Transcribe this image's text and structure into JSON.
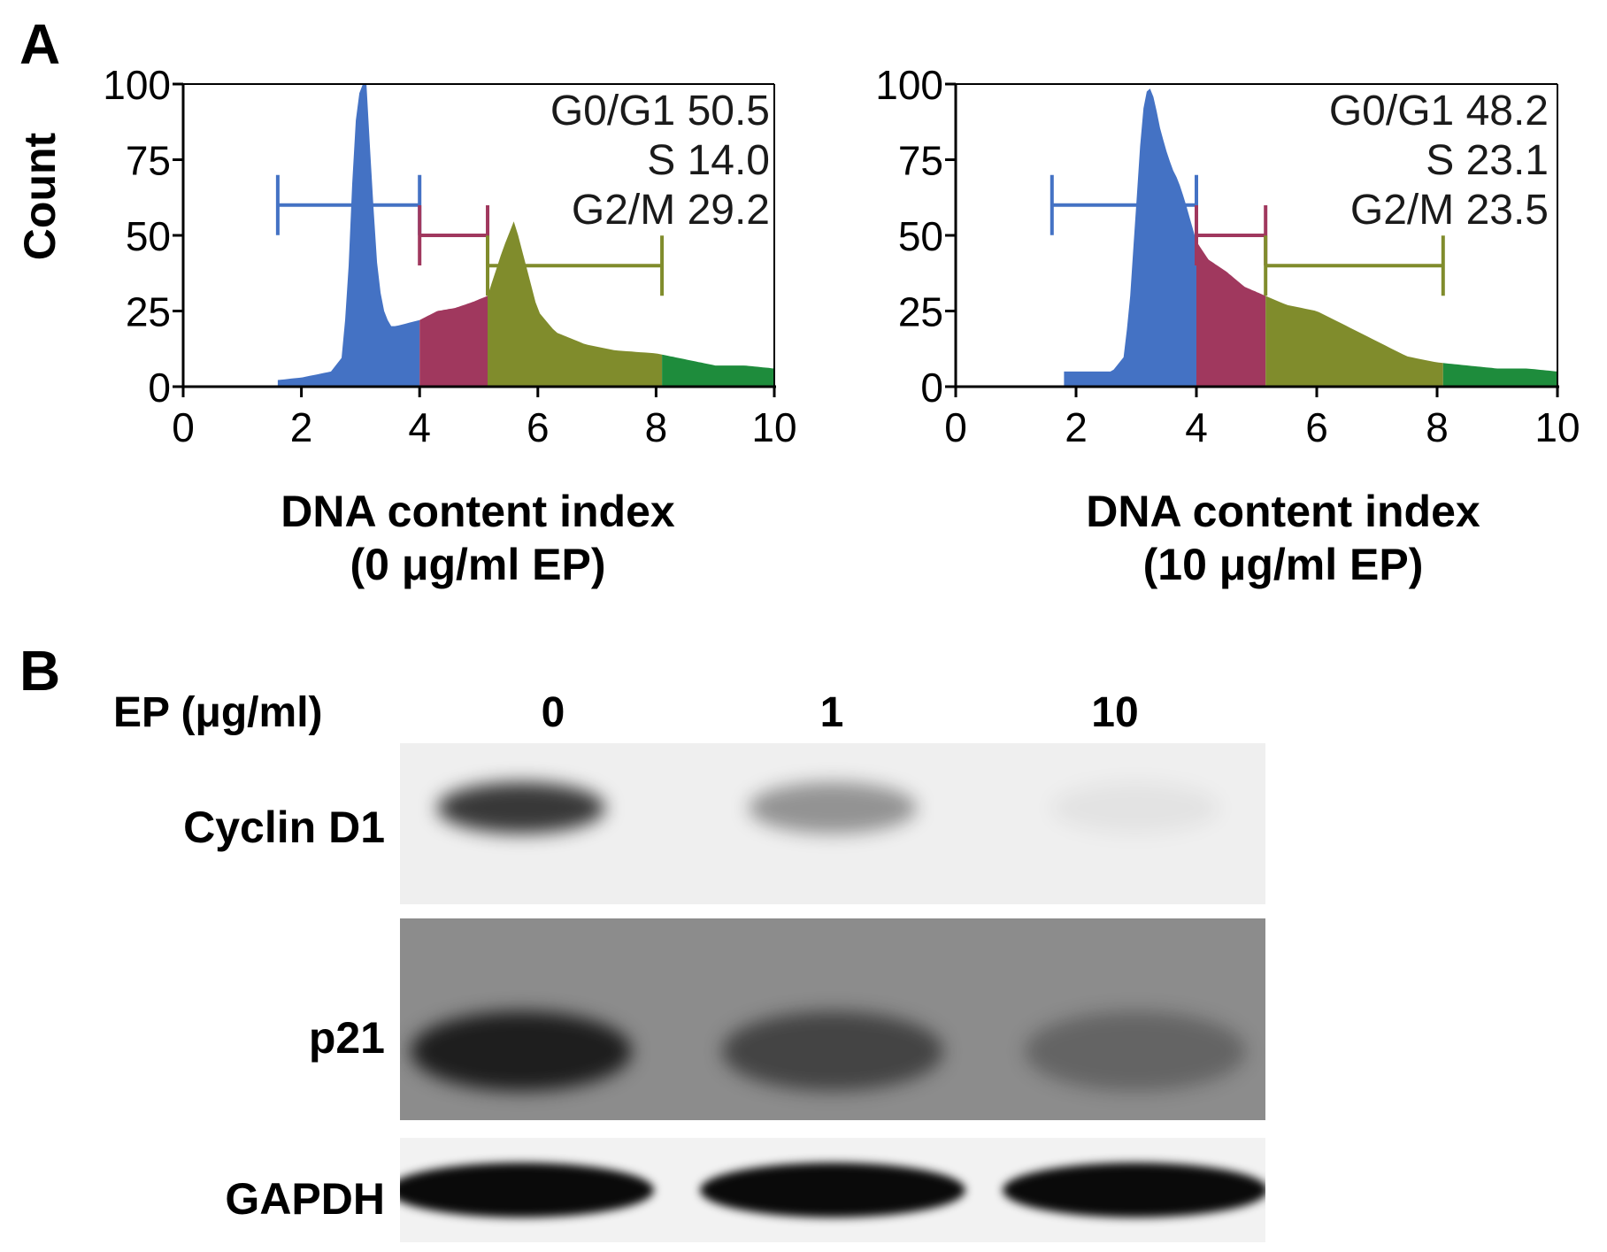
{
  "panel_a": {
    "letter": "A",
    "y_label": "Count",
    "histograms": [
      {
        "x_label_line1": "DNA content index",
        "x_label_line2": "(0 μg/ml EP)",
        "stats": [
          {
            "phase": "G0/G1",
            "value": "50.5",
            "text": "G0/G1 50.5"
          },
          {
            "phase": "S",
            "value": "14.0",
            "text": "S 14.0"
          },
          {
            "phase": "G2/M",
            "value": "29.2",
            "text": "G2/M 29.2"
          }
        ]
      },
      {
        "x_label_line1": "DNA content index",
        "x_label_line2": "(10 μg/ml EP)",
        "stats": [
          {
            "phase": "G0/G1",
            "value": "48.2",
            "text": "G0/G1 48.2"
          },
          {
            "phase": "S",
            "value": "23.1",
            "text": "S 23.1"
          },
          {
            "phase": "G2/M",
            "value": "23.5",
            "text": "G2/M 23.5"
          }
        ]
      }
    ]
  },
  "chart_data": [
    {
      "type": "area",
      "x": [
        1.5,
        2,
        2.5,
        2.7,
        2.8,
        2.9,
        3.0,
        3.1,
        3.2,
        3.3,
        3.4,
        3.5,
        3.6,
        3.8,
        4.0,
        4.3,
        4.6,
        4.9,
        5.15,
        5.4,
        5.6,
        5.8,
        6.0,
        6.3,
        6.8,
        7.3,
        8.0,
        8.5,
        9.0,
        9.5,
        10.0
      ],
      "y": [
        2,
        3,
        5,
        10,
        40,
        85,
        100,
        100,
        65,
        35,
        25,
        20,
        20,
        21,
        22,
        25,
        26,
        28,
        30,
        45,
        55,
        40,
        25,
        18,
        14,
        12,
        11,
        9,
        7,
        7,
        6
      ],
      "x_ticks": [
        0,
        2,
        4,
        6,
        8,
        10
      ],
      "y_ticks": [
        0,
        25,
        50,
        75,
        100
      ],
      "xlim": [
        0,
        10
      ],
      "ylim": [
        0,
        100
      ],
      "xlabel": "DNA content index (0 μg/ml EP)",
      "ylabel": "Count",
      "gates": [
        {
          "name": "G0/G1",
          "range": [
            1.6,
            4.0
          ],
          "level": 60,
          "color": "#4472c4"
        },
        {
          "name": "S",
          "range": [
            4.0,
            5.15
          ],
          "level": 50,
          "color": "#a0385e"
        },
        {
          "name": "G2/M",
          "range": [
            5.15,
            8.1
          ],
          "level": 40,
          "color": "#808c2c"
        },
        {
          "name": "",
          "range": [
            8.1,
            10.0
          ],
          "level": null,
          "color": "#1e8c3c"
        }
      ]
    },
    {
      "type": "area",
      "x": [
        1.8,
        2.2,
        2.6,
        2.8,
        2.9,
        3.0,
        3.1,
        3.2,
        3.3,
        3.4,
        3.5,
        3.6,
        3.7,
        3.8,
        4.0,
        4.2,
        4.5,
        4.8,
        5.15,
        5.5,
        6.0,
        6.5,
        7.0,
        7.5,
        8.0,
        8.5,
        9.0,
        9.5,
        10.0
      ],
      "y": [
        5,
        5,
        5,
        10,
        30,
        60,
        90,
        100,
        95,
        85,
        78,
        72,
        68,
        62,
        48,
        42,
        38,
        33,
        30,
        27,
        25,
        20,
        15,
        10,
        8,
        7,
        6,
        6,
        5
      ],
      "x_ticks": [
        0,
        2,
        4,
        6,
        8,
        10
      ],
      "y_ticks": [
        0,
        25,
        50,
        75,
        100
      ],
      "xlim": [
        0,
        10
      ],
      "ylim": [
        0,
        100
      ],
      "xlabel": "DNA content index (10 μg/ml EP)",
      "ylabel": "",
      "gates": [
        {
          "name": "G0/G1",
          "range": [
            1.6,
            4.0
          ],
          "level": 60,
          "color": "#4472c4"
        },
        {
          "name": "S",
          "range": [
            4.0,
            5.15
          ],
          "level": 50,
          "color": "#a0385e"
        },
        {
          "name": "G2/M",
          "range": [
            5.15,
            8.1
          ],
          "level": 40,
          "color": "#808c2c"
        },
        {
          "name": "",
          "range": [
            8.1,
            10.0
          ],
          "level": null,
          "color": "#1e8c3c"
        }
      ]
    }
  ],
  "panel_b": {
    "letter": "B",
    "treatment_label": "EP (μg/ml)",
    "lanes": [
      "0",
      "1",
      "10"
    ],
    "blots": [
      {
        "protein": "Cyclin D1",
        "background": "#efefef",
        "band_intensity": [
          0.8,
          0.4,
          0.05
        ]
      },
      {
        "protein": "p21",
        "background": "#8c8c8c",
        "band_intensity": [
          0.85,
          0.55,
          0.3
        ]
      },
      {
        "protein": "GAPDH",
        "background": "#f2f2f2",
        "band_intensity": [
          1.0,
          1.0,
          1.0
        ]
      }
    ]
  }
}
